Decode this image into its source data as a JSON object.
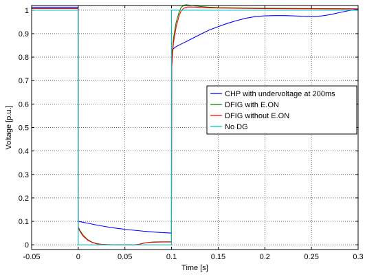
{
  "chart_data": {
    "type": "line",
    "xlabel": "Time [s]",
    "ylabel": "Voltage [p.u.]",
    "xlim": [
      -0.05,
      0.3
    ],
    "ylim": [
      -0.02,
      1.02
    ],
    "x_ticks": [
      -0.05,
      0,
      0.05,
      0.1,
      0.15,
      0.2,
      0.25,
      0.3
    ],
    "x_tick_labels": [
      "-0.05",
      "0",
      "0.05",
      "0.1",
      "0.15",
      "0.2",
      "0.25",
      "0.3"
    ],
    "y_ticks": [
      0,
      0.1,
      0.2,
      0.3,
      0.4,
      0.5,
      0.6,
      0.7,
      0.8,
      0.9,
      1
    ],
    "y_tick_labels": [
      "0",
      "0.1",
      "0.2",
      "0.3",
      "0.4",
      "0.5",
      "0.6",
      "0.7",
      "0.8",
      "0.9",
      "1"
    ],
    "grid": true,
    "legend_position": "center-right",
    "series": [
      {
        "name": "CHP with undervoltage at 200ms",
        "color": "#0000ff",
        "x": [
          -0.05,
          -0.0001,
          0,
          0.0001,
          0.01,
          0.02,
          0.03,
          0.04,
          0.05,
          0.06,
          0.07,
          0.08,
          0.09,
          0.0999,
          0.1,
          0.1001,
          0.105,
          0.11,
          0.12,
          0.13,
          0.14,
          0.15,
          0.16,
          0.17,
          0.18,
          0.19,
          0.2,
          0.21,
          0.22,
          0.23,
          0.24,
          0.25,
          0.26,
          0.27,
          0.28,
          0.29,
          0.3
        ],
        "y": [
          1.013,
          1.013,
          0.55,
          0.1,
          0.092,
          0.084,
          0.077,
          0.071,
          0.066,
          0.062,
          0.058,
          0.055,
          0.052,
          0.05,
          0.45,
          0.83,
          0.845,
          0.855,
          0.875,
          0.895,
          0.915,
          0.93,
          0.944,
          0.956,
          0.966,
          0.973,
          0.976,
          0.977,
          0.977,
          0.976,
          0.974,
          0.973,
          0.975,
          0.981,
          0.99,
          0.998,
          1.004
        ]
      },
      {
        "name": "DFIG with E.ON",
        "color": "#008000",
        "x": [
          -0.05,
          -0.0001,
          0,
          0.0001,
          0.002,
          0.005,
          0.01,
          0.015,
          0.02,
          0.025,
          0.03,
          0.04,
          0.05,
          0.06,
          0.065,
          0.07,
          0.075,
          0.08,
          0.09,
          0.0999,
          0.1,
          0.1001,
          0.102,
          0.105,
          0.108,
          0.11,
          0.113,
          0.116,
          0.12,
          0.13,
          0.14,
          0.15,
          0.2,
          0.25,
          0.3
        ],
        "y": [
          1.007,
          1.007,
          0.5,
          0.075,
          0.06,
          0.042,
          0.022,
          0.011,
          0.005,
          0.002,
          0.001,
          0,
          0,
          0,
          0.002,
          0.007,
          0.01,
          0.012,
          0.013,
          0.013,
          0.4,
          0.77,
          0.88,
          0.95,
          0.99,
          1.01,
          1.021,
          1.023,
          1.021,
          1.016,
          1.013,
          1.011,
          1.008,
          1.007,
          1.006
        ]
      },
      {
        "name": "DFIG without E.ON",
        "color": "#ff0000",
        "x": [
          -0.05,
          -0.0001,
          0,
          0.0001,
          0.002,
          0.005,
          0.01,
          0.015,
          0.02,
          0.025,
          0.03,
          0.04,
          0.05,
          0.06,
          0.065,
          0.07,
          0.075,
          0.08,
          0.09,
          0.0999,
          0.1,
          0.1001,
          0.102,
          0.105,
          0.108,
          0.11,
          0.113,
          0.116,
          0.12,
          0.13,
          0.14,
          0.15,
          0.2,
          0.25,
          0.3
        ],
        "y": [
          1.007,
          1.007,
          0.5,
          0.07,
          0.056,
          0.038,
          0.02,
          0.01,
          0.004,
          0.002,
          0.001,
          0,
          0,
          0,
          0.002,
          0.007,
          0.01,
          0.011,
          0.012,
          0.012,
          0.38,
          0.75,
          0.86,
          0.93,
          0.975,
          0.995,
          1.008,
          1.013,
          1.014,
          1.012,
          1.01,
          1.009,
          1.007,
          1.006,
          1.005
        ]
      },
      {
        "name": "No DG",
        "color": "#00bfbf",
        "x": [
          -0.05,
          -0.0001,
          0,
          0.0999,
          0.1,
          0.3
        ],
        "y": [
          1,
          1,
          0,
          0,
          1,
          1
        ]
      }
    ]
  }
}
